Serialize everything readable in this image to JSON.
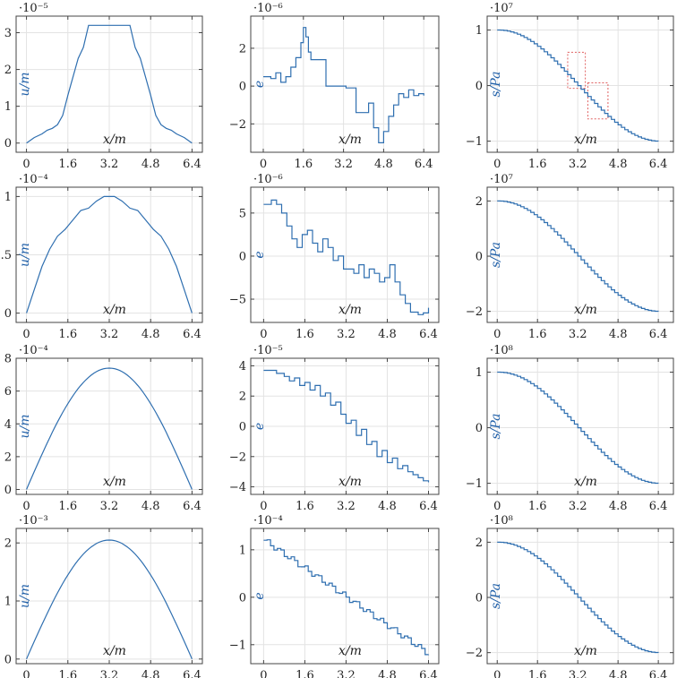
{
  "chart_data": [
    {
      "type": "line",
      "xlabel": "x/m",
      "ylabel": "u/m",
      "exponent": "·10⁻⁵",
      "xticks": [
        "0",
        "1.6",
        "3.2",
        "4.8",
        "6.4"
      ],
      "yticks": [
        "0",
        "1",
        "2",
        "3"
      ],
      "xlim": [
        -0.4,
        6.8
      ],
      "ylim": [
        -0.25,
        3.45
      ],
      "step": false,
      "series": [
        {
          "x": [
            0,
            0.3,
            0.6,
            0.8,
            1.0,
            1.2,
            1.4,
            1.6,
            2.0,
            2.2,
            2.4,
            3.2,
            4.0,
            4.2,
            4.4,
            4.8,
            5.0,
            5.2,
            5.4,
            5.6,
            5.8,
            6.1,
            6.4
          ],
          "y": [
            0,
            0.15,
            0.25,
            0.35,
            0.4,
            0.5,
            0.75,
            1.3,
            2.3,
            2.6,
            3.2,
            3.2,
            3.2,
            2.6,
            2.3,
            1.3,
            0.75,
            0.5,
            0.4,
            0.35,
            0.25,
            0.15,
            0
          ]
        }
      ]
    },
    {
      "type": "line",
      "xlabel": "x/m",
      "ylabel": "e",
      "exponent": "·10⁻⁶",
      "xticks": [
        "0",
        "1.6",
        "3.2",
        "4.8",
        "6.4"
      ],
      "yticks": [
        "−2",
        "0",
        "2"
      ],
      "xlim": [
        -0.5,
        7.0
      ],
      "ylim": [
        -3.5,
        3.7
      ],
      "step": true,
      "series": [
        {
          "x": [
            0,
            0.3,
            0.5,
            0.7,
            0.9,
            1.1,
            1.3,
            1.5,
            1.6,
            1.7,
            1.8,
            1.9,
            2.1,
            2.5,
            2.9,
            3.3,
            3.7,
            4.0,
            4.2,
            4.4,
            4.6,
            4.8,
            5.0,
            5.2,
            5.4,
            5.6,
            5.8,
            6.0,
            6.2,
            6.4
          ],
          "y": [
            0.5,
            0.4,
            0.7,
            0.2,
            0.5,
            1.0,
            1.5,
            2.3,
            3.1,
            2.6,
            1.8,
            1.4,
            1.4,
            0,
            0,
            -0.1,
            -1.4,
            -1.4,
            -0.9,
            -2.2,
            -3.0,
            -2.4,
            -1.6,
            -1.0,
            -0.4,
            -0.6,
            -0.2,
            -0.5,
            -0.4,
            -0.5
          ]
        }
      ]
    },
    {
      "type": "line",
      "xlabel": "x/m",
      "ylabel": "s/Pa",
      "exponent": "·10⁷",
      "xticks": [
        "0",
        "1.6",
        "3.2",
        "4.8",
        "6.4"
      ],
      "yticks": [
        "−1",
        "0",
        "1"
      ],
      "xlim": [
        -0.4,
        7.0
      ],
      "ylim": [
        -1.2,
        1.25
      ],
      "step": true,
      "fn": "cos",
      "amp": 1.0,
      "zoom_boxes": [
        [
          2.8,
          3.5,
          -0.05,
          0.6
        ],
        [
          3.6,
          4.4,
          -0.6,
          0.05
        ]
      ]
    },
    {
      "type": "line",
      "xlabel": "x/m",
      "ylabel": "u/m",
      "exponent": "·10⁻⁴",
      "xticks": [
        "0",
        "1.6",
        "3.2",
        "4.8",
        "6.4"
      ],
      "yticks": [
        "0",
        "0.5",
        "1"
      ],
      "xlim": [
        -0.4,
        6.8
      ],
      "ylim": [
        -0.08,
        1.08
      ],
      "step": false,
      "series": [
        {
          "x": [
            0,
            0.3,
            0.6,
            0.9,
            1.2,
            1.5,
            1.8,
            2.1,
            2.4,
            2.7,
            3.0,
            3.2,
            3.4,
            3.7,
            4.0,
            4.3,
            4.6,
            4.9,
            5.2,
            5.5,
            5.8,
            6.1,
            6.4
          ],
          "y": [
            0,
            0.2,
            0.4,
            0.55,
            0.66,
            0.72,
            0.8,
            0.88,
            0.9,
            0.96,
            1.0,
            1.0,
            1.0,
            0.96,
            0.9,
            0.88,
            0.8,
            0.72,
            0.66,
            0.55,
            0.4,
            0.2,
            0
          ]
        }
      ]
    },
    {
      "type": "line",
      "xlabel": "x/m",
      "ylabel": "e",
      "exponent": "·10⁻⁶",
      "xticks": [
        "0",
        "1.6",
        "3.2",
        "4.8",
        "6.4"
      ],
      "yticks": [
        "−5",
        "0",
        "5"
      ],
      "xlim": [
        -0.5,
        6.8
      ],
      "ylim": [
        -7.7,
        8.0
      ],
      "step": true,
      "series": [
        {
          "x": [
            0,
            0.3,
            0.5,
            0.7,
            0.9,
            1.1,
            1.3,
            1.5,
            1.7,
            1.9,
            2.1,
            2.3,
            2.5,
            2.7,
            2.9,
            3.1,
            3.3,
            3.5,
            3.7,
            3.9,
            4.1,
            4.3,
            4.5,
            4.7,
            4.9,
            5.1,
            5.3,
            5.5,
            5.7,
            6.0,
            6.2,
            6.4
          ],
          "y": [
            6,
            6.5,
            6.0,
            5.0,
            3.5,
            2.0,
            1.0,
            2.5,
            3.0,
            1.5,
            0.5,
            2.0,
            1.0,
            -0.5,
            0,
            -1.5,
            -1.5,
            -2.0,
            -1.0,
            -2.5,
            -1.5,
            -2.0,
            -3.0,
            -2.5,
            -1.0,
            -3.0,
            -4.5,
            -5.5,
            -6.5,
            -6.8,
            -6.6,
            -6.0
          ]
        }
      ]
    },
    {
      "type": "line",
      "xlabel": "x/m",
      "ylabel": "s/Pa",
      "exponent": "·10⁷",
      "xticks": [
        "0",
        "1.6",
        "3.2",
        "4.8",
        "6.4"
      ],
      "yticks": [
        "−2",
        "0",
        "2"
      ],
      "xlim": [
        -0.4,
        7.0
      ],
      "ylim": [
        -2.4,
        2.5
      ],
      "step": true,
      "fn": "cos",
      "amp": 2.0
    },
    {
      "type": "line",
      "xlabel": "x/m",
      "ylabel": "u/m",
      "exponent": "·10⁻⁴",
      "xticks": [
        "0",
        "1.6",
        "3.2",
        "4.8",
        "6.4"
      ],
      "yticks": [
        "0",
        "2",
        "4",
        "6",
        "8"
      ],
      "xlim": [
        -0.4,
        6.8
      ],
      "ylim": [
        -0.3,
        8.0
      ],
      "step": false,
      "fn": "sin",
      "amp": 7.4
    },
    {
      "type": "line",
      "xlabel": "x/m",
      "ylabel": "e",
      "exponent": "·10⁻⁵",
      "xticks": [
        "0",
        "1.6",
        "3.2",
        "4.8",
        "6.4"
      ],
      "yticks": [
        "−4",
        "−2",
        "0",
        "2",
        "4"
      ],
      "xlim": [
        -0.5,
        6.8
      ],
      "ylim": [
        -4.5,
        4.5
      ],
      "step": true,
      "series": [
        {
          "x": [
            0,
            0.5,
            0.8,
            1.0,
            1.2,
            1.4,
            1.6,
            1.8,
            2.0,
            2.2,
            2.4,
            2.6,
            2.8,
            3.0,
            3.2,
            3.4,
            3.6,
            3.8,
            4.0,
            4.2,
            4.4,
            4.6,
            4.8,
            5.0,
            5.2,
            5.4,
            5.6,
            5.8,
            6.0,
            6.2,
            6.4
          ],
          "y": [
            3.7,
            3.5,
            3.3,
            3.0,
            3.2,
            2.7,
            2.9,
            2.4,
            2.7,
            2.0,
            2.2,
            1.4,
            1.6,
            0.8,
            0.2,
            0.4,
            -0.6,
            -0.2,
            -1.2,
            -1.0,
            -2.0,
            -1.6,
            -2.4,
            -2.1,
            -2.8,
            -2.6,
            -3.0,
            -3.2,
            -3.4,
            -3.6,
            -3.7
          ]
        }
      ]
    },
    {
      "type": "line",
      "xlabel": "x/m",
      "ylabel": "s/Pa",
      "exponent": "·10⁸",
      "xticks": [
        "0",
        "1.6",
        "3.2",
        "4.8",
        "6.4"
      ],
      "yticks": [
        "−1",
        "0",
        "1"
      ],
      "xlim": [
        -0.4,
        7.0
      ],
      "ylim": [
        -1.2,
        1.25
      ],
      "step": true,
      "fn": "cos",
      "amp": 1.0
    },
    {
      "type": "line",
      "xlabel": "x/m",
      "ylabel": "u/m",
      "exponent": "·10⁻³",
      "xticks": [
        "0",
        "1.6",
        "3.2",
        "4.8",
        "6.4"
      ],
      "yticks": [
        "0",
        "1",
        "2"
      ],
      "xlim": [
        -0.4,
        6.8
      ],
      "ylim": [
        -0.08,
        2.25
      ],
      "step": false,
      "fn": "sin",
      "amp": 2.05
    },
    {
      "type": "line",
      "xlabel": "x/m",
      "ylabel": "e",
      "exponent": "·10⁻⁴",
      "xticks": [
        "0",
        "1.6",
        "3.2",
        "4.8",
        "6.4"
      ],
      "yticks": [
        "−1",
        "0",
        "1"
      ],
      "xlim": [
        -0.5,
        6.8
      ],
      "ylim": [
        -1.4,
        1.45
      ],
      "step": true,
      "fn": "linstep",
      "amp": 1.2
    },
    {
      "type": "line",
      "xlabel": "x/m",
      "ylabel": "s/Pa",
      "exponent": "·10⁸",
      "xticks": [
        "0",
        "1.6",
        "3.2",
        "4.8",
        "6.4"
      ],
      "yticks": [
        "−2",
        "0",
        "2"
      ],
      "xlim": [
        -0.4,
        7.0
      ],
      "ylim": [
        -2.4,
        2.5
      ],
      "step": true,
      "fn": "cos",
      "amp": 2.0
    }
  ],
  "colors": {
    "curve": "#2f6fb0",
    "zoom_box": "#e06060",
    "grid": "#e3e3e3"
  }
}
